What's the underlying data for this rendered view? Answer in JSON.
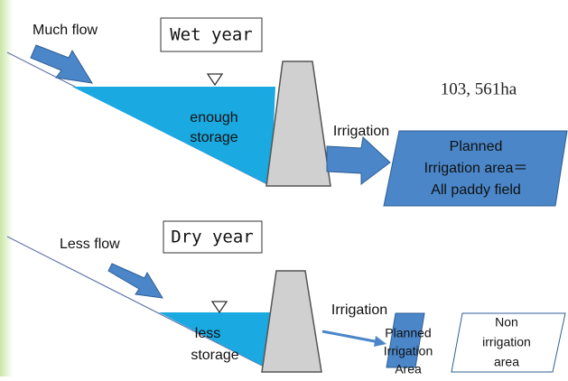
{
  "wet": {
    "inflow": "Much flow",
    "title": "Wet year",
    "storage": [
      "enough",
      "storage"
    ],
    "irrigation": "Irrigation",
    "area_size": "103, 561ha",
    "area": [
      "Planned",
      "Irrigation area＝",
      "All paddy field"
    ]
  },
  "dry": {
    "inflow": "Less flow",
    "title": "Dry year",
    "storage": [
      "less",
      "storage"
    ],
    "irrigation": "Irrigation",
    "planned_area": [
      "Planned",
      "Irrigation",
      "Area"
    ],
    "non_area": [
      "Non",
      "irrigation",
      "area"
    ]
  }
}
